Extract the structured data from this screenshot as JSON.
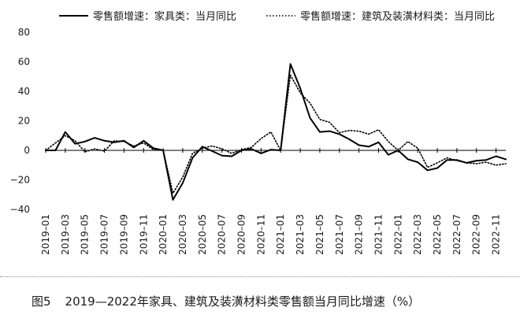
{
  "chart_data": {
    "type": "line",
    "xlabel": "",
    "ylabel": "",
    "ylim": [
      -40,
      80
    ],
    "yticks": [
      "80",
      "60",
      "40",
      "20",
      "0",
      "−20",
      "−40"
    ],
    "grid": false,
    "legend_position": "top",
    "x": [
      "2019-01",
      "2019-02",
      "2019-03",
      "2019-04",
      "2019-05",
      "2019-06",
      "2019-07",
      "2019-08",
      "2019-09",
      "2019-10",
      "2019-11",
      "2019-12",
      "2020-01",
      "2020-02",
      "2020-03",
      "2020-04",
      "2020-05",
      "2020-06",
      "2020-07",
      "2020-08",
      "2020-09",
      "2020-10",
      "2020-11",
      "2020-12",
      "2021-01",
      "2021-02",
      "2021-03",
      "2021-04",
      "2021-05",
      "2021-06",
      "2021-07",
      "2021-08",
      "2021-09",
      "2021-10",
      "2021-11",
      "2021-12",
      "2022-01",
      "2022-02",
      "2022-03",
      "2022-04",
      "2022-05",
      "2022-06",
      "2022-07",
      "2022-08",
      "2022-09",
      "2022-10",
      "2022-11",
      "2022-12"
    ],
    "x_tick_labels": [
      "2019–01",
      "2019–03",
      "2019–05",
      "2019–07",
      "2019–09",
      "2019–11",
      "2020–01",
      "2020–03",
      "2020–05",
      "2020–07",
      "2020–09",
      "2020–11",
      "2021–01",
      "2021–03",
      "2021–05",
      "2021–07",
      "2021–09",
      "2021–11",
      "2022–01",
      "2022–03",
      "2022–05",
      "2022–07",
      "2022–09",
      "2022–11"
    ],
    "series": [
      {
        "name": "零售额增速：家具类：当月同比",
        "style": "solid",
        "color": "#000000",
        "values": [
          null,
          null,
          12.5,
          4.5,
          6,
          8.5,
          6.5,
          5.5,
          6.5,
          2,
          6.5,
          1.5,
          null,
          -33.5,
          -22,
          -5,
          2.5,
          -0.5,
          -3.5,
          -4,
          0,
          1,
          -2,
          0.5,
          null,
          58.5,
          42,
          22,
          12.5,
          13,
          11,
          7.5,
          3.5,
          2.5,
          5.5,
          -3,
          0,
          -6,
          -8,
          -13.5,
          -12,
          -6.5,
          -6.5,
          -8.5,
          -7,
          -6.5,
          -4,
          -6
        ]
      },
      {
        "name": "零售额增速：建筑及装潢材料类：当月同比",
        "style": "dotted",
        "color": "#000000",
        "values": [
          null,
          5,
          10,
          6.5,
          -1,
          1,
          -0.5,
          6.5,
          6,
          3,
          5,
          0.5,
          null,
          -29,
          -18,
          -2,
          1.5,
          3,
          1,
          -2,
          0.5,
          2,
          8,
          12.5,
          null,
          51,
          39,
          32,
          21,
          19,
          12,
          13.5,
          13,
          11,
          14,
          6,
          0,
          6,
          1.5,
          -11.5,
          -8.5,
          -5,
          -7,
          -8.5,
          -9,
          -8,
          -10,
          -9
        ]
      }
    ]
  },
  "caption": {
    "figure_label": "图5",
    "text": "2019—2022年家具、建筑及装潢材料类零售额当月同比增速（%）"
  }
}
